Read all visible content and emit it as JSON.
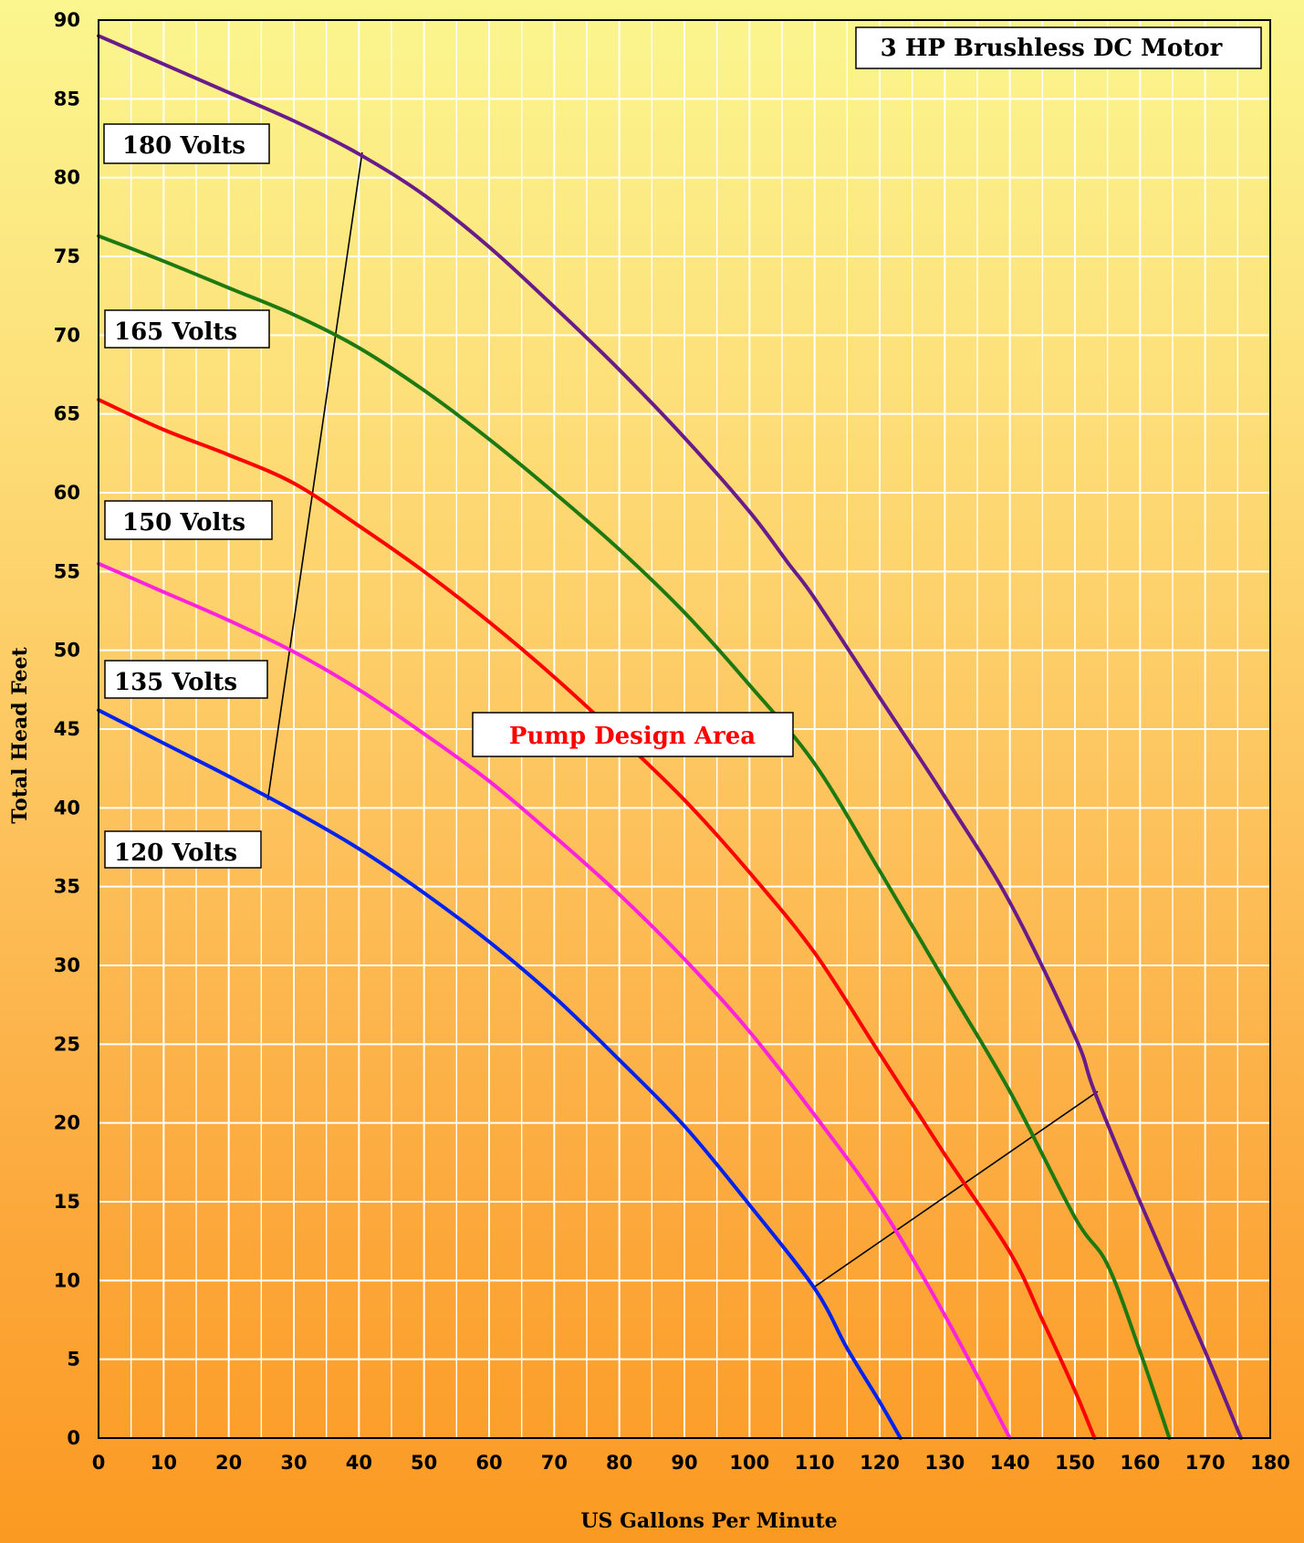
{
  "chart_data": {
    "type": "line",
    "title": "3 HP Brushless DC  Motor",
    "xlabel": "US Gallons Per Minute",
    "ylabel": "Total Head Feet",
    "xlim": [
      0,
      180
    ],
    "ylim": [
      0,
      90
    ],
    "xticks": [
      0,
      10,
      20,
      30,
      40,
      50,
      60,
      70,
      80,
      90,
      100,
      110,
      120,
      130,
      140,
      150,
      160,
      170,
      180
    ],
    "yticks": [
      0,
      5,
      10,
      15,
      20,
      25,
      30,
      35,
      40,
      45,
      50,
      55,
      60,
      65,
      70,
      75,
      80,
      85,
      90
    ],
    "grid": true,
    "series": [
      {
        "name": "180 Volts",
        "color": "#6a1b8a",
        "x": [
          0,
          10,
          20,
          30,
          40,
          50,
          60,
          70,
          80,
          90,
          100,
          106,
          110,
          120,
          130,
          140,
          150,
          153,
          160,
          170,
          175.5
        ],
        "y": [
          89,
          87.2,
          85.4,
          83.6,
          81.5,
          78.9,
          75.6,
          71.8,
          67.8,
          63.5,
          58.8,
          55.5,
          53.3,
          47,
          40.7,
          34,
          25.5,
          22,
          15,
          5.5,
          0
        ]
      },
      {
        "name": "165 Volts",
        "color": "#1e7a10",
        "x": [
          0,
          10,
          20,
          30,
          40,
          50,
          60,
          70,
          80,
          90,
          100,
          110,
          120,
          130,
          140,
          150,
          155,
          160,
          164.5
        ],
        "y": [
          76.3,
          74.7,
          73,
          71.3,
          69.2,
          66.5,
          63.4,
          60,
          56.4,
          52.4,
          47.8,
          42.8,
          36,
          29,
          22,
          14,
          11,
          5.5,
          0
        ]
      },
      {
        "name": "150 Volts",
        "color": "#ff0000",
        "x": [
          0,
          10,
          20,
          30,
          40,
          50,
          60,
          70,
          80,
          90,
          100,
          110,
          120,
          130,
          140,
          145,
          150,
          153
        ],
        "y": [
          65.9,
          64,
          62.4,
          60.6,
          57.9,
          55,
          51.8,
          48.3,
          44.5,
          40.5,
          35.9,
          30.8,
          24.4,
          18,
          11.8,
          7.5,
          3,
          0
        ]
      },
      {
        "name": "135 Volts",
        "color": "#ff22dd",
        "x": [
          0,
          10,
          20,
          30,
          40,
          50,
          60,
          70,
          80,
          90,
          100,
          110,
          120,
          130,
          140
        ],
        "y": [
          55.5,
          53.7,
          51.9,
          49.9,
          47.5,
          44.7,
          41.7,
          38.2,
          34.5,
          30.4,
          25.8,
          20.5,
          14.8,
          7.8,
          0
        ]
      },
      {
        "name": "120 Volts",
        "color": "#0022ee",
        "x": [
          0,
          10,
          20,
          30,
          40,
          50,
          60,
          70,
          80,
          90,
          100,
          110,
          115,
          120,
          123.2
        ],
        "y": [
          46.2,
          44.1,
          42,
          39.8,
          37.4,
          34.6,
          31.5,
          28,
          24,
          19.8,
          14.8,
          9.5,
          5.7,
          2.3,
          0
        ]
      }
    ],
    "design_lines": [
      {
        "x": [
          26,
          40.5
        ],
        "y": [
          40.5,
          81.6
        ]
      },
      {
        "x": [
          110,
          153.5
        ],
        "y": [
          9.6,
          22
        ]
      }
    ],
    "annotations": {
      "design_area": "Pump Design Area"
    }
  }
}
